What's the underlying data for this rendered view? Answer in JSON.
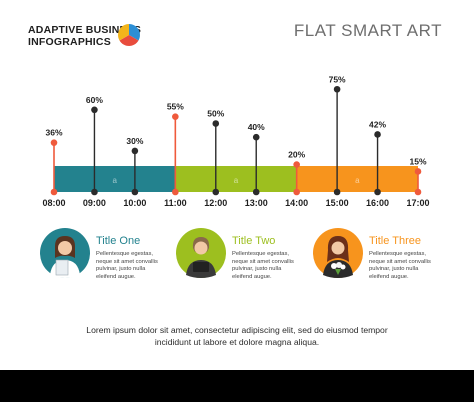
{
  "header": {
    "brand_line1": "ADAPTIVE BUSINESS",
    "brand_line2": "INFOGRAPHICS",
    "title": "FLAT SMART ART"
  },
  "colors": {
    "teal": "#23828e",
    "green": "#9dbf1f",
    "orange": "#f7941d",
    "red_marker": "#ef5a3c",
    "dark": "#2b2b2b",
    "logo_blue": "#2d8fd5",
    "logo_red": "#e84c3d",
    "logo_yellow": "#f3b51b"
  },
  "chart_data": {
    "type": "timeline-lollipop",
    "categories": [
      "08:00",
      "09:00",
      "10:00",
      "11:00",
      "12:00",
      "13:00",
      "14:00",
      "15:00",
      "16:00",
      "17:00"
    ],
    "values": [
      36,
      60,
      30,
      55,
      50,
      40,
      20,
      75,
      42,
      15
    ],
    "value_labels": [
      "36%",
      "60%",
      "30%",
      "55%",
      "50%",
      "40%",
      "20%",
      "75%",
      "42%",
      "15%"
    ],
    "highlighted": [
      0,
      3,
      6,
      9
    ],
    "bands": [
      {
        "from": "08:00",
        "to": "11:00",
        "color": "#23828e",
        "label": "a"
      },
      {
        "from": "11:00",
        "to": "14:00",
        "color": "#9dbf1f",
        "label": "a"
      },
      {
        "from": "14:00",
        "to": "17:00",
        "color": "#f7941d",
        "label": "a"
      }
    ],
    "ylim": [
      0,
      80
    ]
  },
  "cards": [
    {
      "title": "Title One",
      "text": "Pellentesque egestas,\nneque sit amet convallis\npulvinar, justo nulla\neleifend augue.",
      "color": "#23828e"
    },
    {
      "title": "Title Two",
      "text": "Pellentesque egestas,\nneque sit amet convallis\npulvinar, justo nulla\neleifend augue.",
      "color": "#9dbf1f"
    },
    {
      "title": "Title Three",
      "text": "Pellentesque egestas,\nneque sit amet convallis\npulvinar, justo nulla\neleifend augue.",
      "color": "#f7941d"
    }
  ],
  "footer": {
    "text": "Lorem ipsum dolor sit amet, consectetur adipiscing elit, sed do eiusmod tempor\nincididunt ut labore et dolore magna aliqua."
  }
}
